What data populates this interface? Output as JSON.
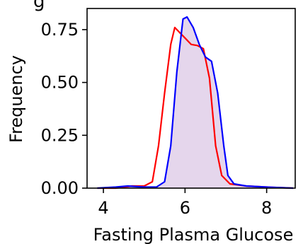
{
  "chart_data": {
    "type": "area",
    "title": "",
    "title_visible_fragment": "g",
    "xlabel": "Fasting Plasma Glucose",
    "ylabel": "Frequency",
    "xlim": [
      3.6,
      8.7
    ],
    "ylim": [
      0.0,
      0.85
    ],
    "x_ticks": [
      4,
      6,
      8
    ],
    "x_tick_labels": [
      "4",
      "6",
      "8"
    ],
    "y_ticks": [
      0.0,
      0.25,
      0.5,
      0.75
    ],
    "y_tick_labels": [
      "0.00",
      "0.25",
      "0.50",
      "0.75"
    ],
    "grid": false,
    "legend": "none",
    "series": [
      {
        "color": "#ff0000",
        "fill": "none",
        "points": [
          [
            3.85,
            0.0
          ],
          [
            4.3,
            0.0
          ],
          [
            4.7,
            0.01
          ],
          [
            5.0,
            0.01
          ],
          [
            5.2,
            0.03
          ],
          [
            5.35,
            0.2
          ],
          [
            5.5,
            0.45
          ],
          [
            5.65,
            0.68
          ],
          [
            5.75,
            0.76
          ],
          [
            5.85,
            0.74
          ],
          [
            6.0,
            0.71
          ],
          [
            6.15,
            0.68
          ],
          [
            6.3,
            0.675
          ],
          [
            6.45,
            0.66
          ],
          [
            6.6,
            0.52
          ],
          [
            6.75,
            0.2
          ],
          [
            6.9,
            0.06
          ],
          [
            7.1,
            0.02
          ],
          [
            7.5,
            0.01
          ],
          [
            8.0,
            0.005
          ],
          [
            8.65,
            0.0
          ]
        ]
      },
      {
        "color": "#0000ff",
        "fill": "#e2d1ea",
        "points": [
          [
            3.85,
            0.0
          ],
          [
            4.3,
            0.005
          ],
          [
            4.6,
            0.01
          ],
          [
            5.0,
            0.005
          ],
          [
            5.3,
            0.005
          ],
          [
            5.5,
            0.03
          ],
          [
            5.65,
            0.2
          ],
          [
            5.8,
            0.55
          ],
          [
            5.95,
            0.8
          ],
          [
            6.05,
            0.81
          ],
          [
            6.2,
            0.76
          ],
          [
            6.35,
            0.68
          ],
          [
            6.5,
            0.62
          ],
          [
            6.65,
            0.6
          ],
          [
            6.8,
            0.45
          ],
          [
            6.95,
            0.2
          ],
          [
            7.05,
            0.06
          ],
          [
            7.2,
            0.02
          ],
          [
            7.5,
            0.01
          ],
          [
            8.0,
            0.005
          ],
          [
            8.65,
            0.0
          ]
        ]
      }
    ]
  }
}
